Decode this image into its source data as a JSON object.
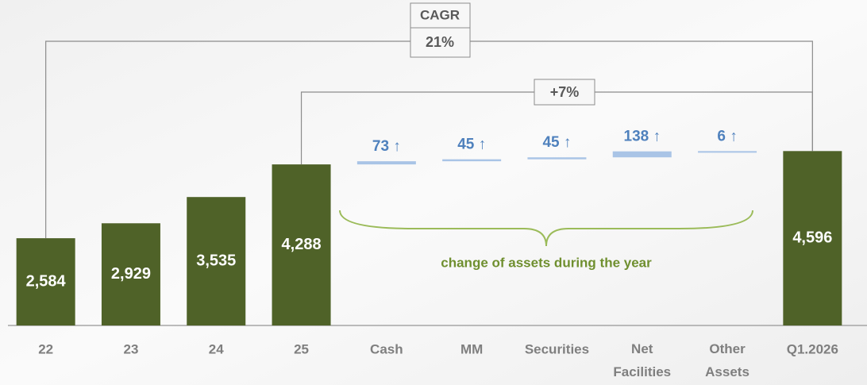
{
  "chart_data": {
    "type": "waterfall",
    "categories": [
      "22",
      "23",
      "24",
      "25",
      "Cash",
      "MM",
      "Securities",
      "Net Facilities",
      "Other Assets",
      "Q1.2026"
    ],
    "values": [
      2584,
      2929,
      3535,
      4288,
      73,
      45,
      45,
      138,
      6,
      4596
    ],
    "value_labels": [
      "2,584",
      "2,929",
      "3,535",
      "4,288",
      "73 ↑",
      "45 ↑",
      "45 ↑",
      "138 ↑",
      "6 ↑",
      "4,596"
    ],
    "measure": [
      "absolute",
      "absolute",
      "absolute",
      "absolute",
      "relative",
      "relative",
      "relative",
      "relative",
      "relative",
      "absolute"
    ],
    "total_color": "#4f6228",
    "change_color": "#a9c4e6",
    "change_label_color": "#4f81bd",
    "ylim": [
      570,
      7900
    ],
    "cagr_title": "CAGR",
    "cagr": {
      "value": 21,
      "label": "21%"
    },
    "growth": {
      "value": 7,
      "label": "+7%"
    },
    "annotation": "change of assets during the year"
  }
}
